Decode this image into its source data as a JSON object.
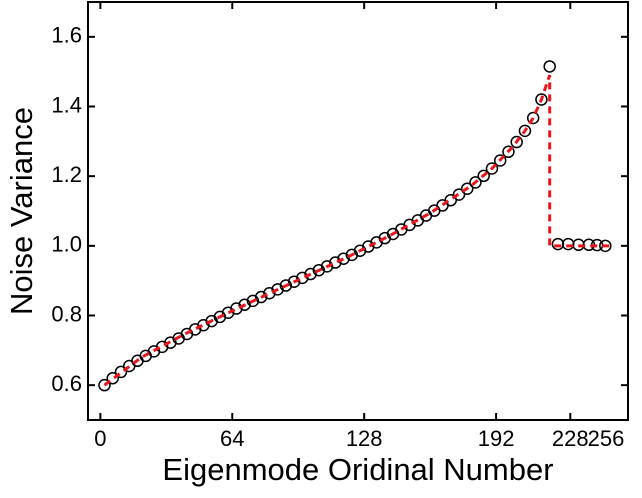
{
  "chart_data": {
    "type": "scatter",
    "xlabel": "Eigenmode Oridinal Number",
    "ylabel": "Noise Variance",
    "xlim": [
      -6,
      256
    ],
    "ylim": [
      0.5,
      1.7
    ],
    "xticks": [
      0,
      64,
      128,
      192,
      228,
      256
    ],
    "yticks": [
      0.6,
      0.8,
      {
        "value": 1,
        "label": "1.0"
      },
      1.2,
      1.4,
      1.6
    ],
    "series": [
      {
        "marker": "circle",
        "color": "#000000",
        "x": [
          2,
          6,
          10,
          14,
          18,
          22,
          26,
          30,
          34,
          38,
          42,
          46,
          50,
          54,
          58,
          62,
          66,
          70,
          74,
          78,
          82,
          86,
          90,
          94,
          98,
          102,
          106,
          110,
          114,
          118,
          122,
          126,
          130,
          134,
          138,
          142,
          146,
          150,
          154,
          158,
          162,
          166,
          170,
          174,
          178,
          182,
          186,
          190,
          194,
          198,
          202,
          206,
          210,
          214,
          218,
          222,
          227,
          232,
          237,
          241,
          245
        ],
        "values": [
          0.6,
          0.62,
          0.638,
          0.655,
          0.67,
          0.684,
          0.697,
          0.71,
          0.722,
          0.734,
          0.747,
          0.76,
          0.772,
          0.784,
          0.796,
          0.808,
          0.82,
          0.831,
          0.842,
          0.853,
          0.864,
          0.875,
          0.886,
          0.897,
          0.908,
          0.919,
          0.93,
          0.941,
          0.952,
          0.963,
          0.974,
          0.986,
          0.998,
          1.01,
          1.022,
          1.034,
          1.047,
          1.06,
          1.073,
          1.087,
          1.101,
          1.116,
          1.131,
          1.147,
          1.164,
          1.182,
          1.201,
          1.222,
          1.245,
          1.27,
          1.298,
          1.33,
          1.367,
          1.42,
          1.515,
          1.005,
          1.005,
          1.003,
          1.003,
          1.002,
          1.0
        ]
      },
      {
        "style": "dashed",
        "color": "#e8161b",
        "x": [
          2,
          20,
          40,
          60,
          80,
          100,
          120,
          140,
          160,
          180,
          190,
          200,
          206,
          210,
          214,
          218,
          218,
          222,
          247
        ],
        "values": [
          0.6,
          0.68,
          0.744,
          0.802,
          0.858,
          0.913,
          0.968,
          1.028,
          1.094,
          1.173,
          1.222,
          1.284,
          1.33,
          1.367,
          1.42,
          1.49,
          1.0,
          1.0,
          1.0
        ]
      }
    ]
  }
}
